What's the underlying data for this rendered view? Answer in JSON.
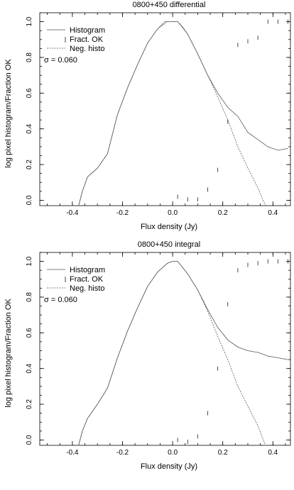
{
  "chart_data": [
    {
      "type": "line",
      "title": "0800+450 differential",
      "xlabel": "Flux density (Jy)",
      "ylabel": "log pixel histogram/Fraction OK",
      "xlim": [
        -0.53,
        0.47
      ],
      "ylim": [
        -0.03,
        1.05
      ],
      "xticks": [
        -0.4,
        -0.2,
        0.0,
        0.2,
        0.4
      ],
      "xtick_labels": [
        "-0.4",
        "-0.2",
        "0.0",
        "0.2",
        "0.4"
      ],
      "yticks": [
        0.0,
        0.2,
        0.4,
        0.6,
        0.8,
        1.0
      ],
      "ytick_labels": [
        "0.0",
        "0.2",
        "0.4",
        "0.6",
        "0.8",
        "1.0"
      ],
      "legend": {
        "placement": "top-left",
        "entries": [
          "Histogram",
          "Fract. OK",
          "Neg. histo"
        ]
      },
      "sigma_text": "σ = 0.060",
      "series": [
        {
          "name": "Histogram",
          "style": "line",
          "x": [
            -0.375,
            -0.36,
            -0.34,
            -0.3,
            -0.26,
            -0.22,
            -0.18,
            -0.14,
            -0.1,
            -0.06,
            -0.03,
            -0.02,
            0.0,
            0.02,
            0.04,
            0.06,
            0.1,
            0.14,
            0.18,
            0.22,
            0.26,
            0.3,
            0.34,
            0.38,
            0.42,
            0.46
          ],
          "y": [
            -0.03,
            0.05,
            0.13,
            0.18,
            0.26,
            0.48,
            0.63,
            0.76,
            0.88,
            0.96,
            1.0,
            1.0,
            1.0,
            1.0,
            0.97,
            0.93,
            0.82,
            0.7,
            0.6,
            0.52,
            0.47,
            0.38,
            0.34,
            0.3,
            0.28,
            0.29
          ]
        },
        {
          "name": "Neg. histo",
          "style": "dashed",
          "x": [
            -0.375,
            -0.36,
            -0.34,
            -0.3,
            -0.26,
            -0.22,
            -0.18,
            -0.14,
            -0.1,
            -0.06,
            -0.02,
            0.0,
            0.02,
            0.06,
            0.1,
            0.14,
            0.18,
            0.22,
            0.26,
            0.3,
            0.34,
            0.37
          ],
          "y": [
            -0.03,
            0.05,
            0.13,
            0.18,
            0.26,
            0.48,
            0.63,
            0.76,
            0.88,
            0.96,
            1.0,
            1.0,
            1.0,
            0.93,
            0.82,
            0.7,
            0.58,
            0.45,
            0.3,
            0.18,
            0.07,
            -0.03
          ]
        },
        {
          "name": "Fract. OK",
          "style": "marks",
          "x": [
            0.02,
            0.06,
            0.1,
            0.14,
            0.18,
            0.22,
            0.26,
            0.3,
            0.34,
            0.38,
            0.42,
            0.46
          ],
          "y": [
            0.02,
            0.005,
            0.005,
            0.06,
            0.17,
            0.44,
            0.87,
            0.89,
            0.91,
            1.0,
            1.0,
            1.0
          ]
        }
      ]
    },
    {
      "type": "line",
      "title": "0800+450 integral",
      "xlabel": "Flux density (Jy)",
      "ylabel": "log pixel histogram/Fraction OK",
      "xlim": [
        -0.53,
        0.47
      ],
      "ylim": [
        -0.03,
        1.05
      ],
      "xticks": [
        -0.4,
        -0.2,
        0.0,
        0.2,
        0.4
      ],
      "xtick_labels": [
        "-0.4",
        "-0.2",
        "0.0",
        "0.2",
        "0.4"
      ],
      "yticks": [
        0.0,
        0.2,
        0.4,
        0.6,
        0.8,
        1.0
      ],
      "ytick_labels": [
        "0.0",
        "0.2",
        "0.4",
        "0.6",
        "0.8",
        "1.0"
      ],
      "legend": {
        "placement": "top-left",
        "entries": [
          "Histogram",
          "Fract. OK",
          "Neg. histo"
        ]
      },
      "sigma_text": "σ = 0.060",
      "series": [
        {
          "name": "Histogram",
          "style": "line",
          "x": [
            -0.375,
            -0.36,
            -0.34,
            -0.3,
            -0.26,
            -0.22,
            -0.18,
            -0.14,
            -0.1,
            -0.06,
            -0.02,
            0.0,
            0.02,
            0.06,
            0.1,
            0.14,
            0.18,
            0.22,
            0.26,
            0.3,
            0.34,
            0.38,
            0.42,
            0.46
          ],
          "y": [
            -0.03,
            0.05,
            0.12,
            0.2,
            0.29,
            0.46,
            0.61,
            0.74,
            0.86,
            0.94,
            0.99,
            1.0,
            1.0,
            0.93,
            0.84,
            0.73,
            0.63,
            0.56,
            0.52,
            0.5,
            0.49,
            0.47,
            0.46,
            0.45
          ]
        },
        {
          "name": "Neg. histo",
          "style": "dashed",
          "x": [
            -0.375,
            -0.36,
            -0.34,
            -0.3,
            -0.26,
            -0.22,
            -0.18,
            -0.14,
            -0.1,
            -0.06,
            -0.02,
            0.0,
            0.02,
            0.06,
            0.1,
            0.14,
            0.18,
            0.22,
            0.26,
            0.3,
            0.34,
            0.37
          ],
          "y": [
            -0.03,
            0.05,
            0.12,
            0.2,
            0.29,
            0.46,
            0.61,
            0.74,
            0.86,
            0.94,
            0.99,
            1.0,
            1.0,
            0.93,
            0.84,
            0.72,
            0.58,
            0.45,
            0.3,
            0.19,
            0.08,
            -0.03
          ]
        },
        {
          "name": "Fract. OK",
          "style": "marks",
          "x": [
            0.02,
            0.06,
            0.1,
            0.14,
            0.18,
            0.22,
            0.26,
            0.3,
            0.34,
            0.38,
            0.42,
            0.46
          ],
          "y": [
            0.0,
            -0.01,
            0.02,
            0.15,
            0.4,
            0.76,
            0.95,
            0.98,
            0.99,
            1.0,
            1.0,
            1.0
          ]
        }
      ]
    }
  ]
}
